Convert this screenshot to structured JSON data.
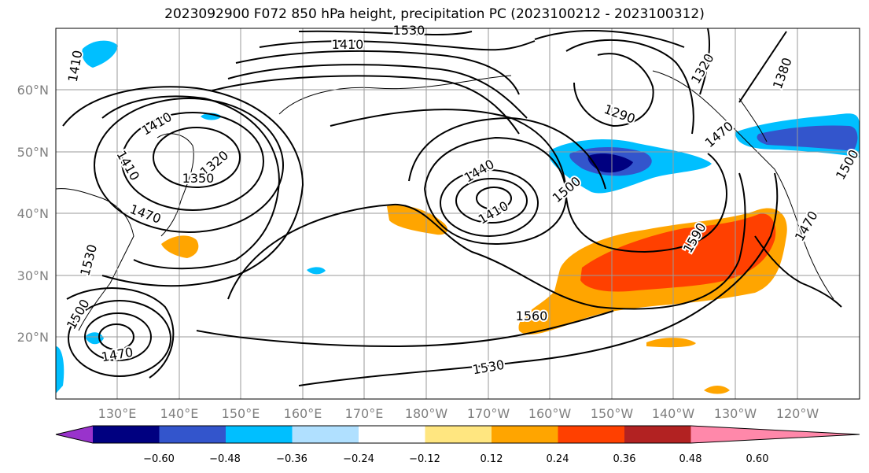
{
  "title": "2023092900 F072 850 hPa height, precipitation PC (2023100212 - 2023100312)",
  "lon_ticks": [
    "130°E",
    "140°E",
    "150°E",
    "160°E",
    "170°E",
    "180°W",
    "170°W",
    "160°W",
    "150°W",
    "140°W",
    "130°W",
    "120°W"
  ],
  "lat_ticks": [
    "60°N",
    "50°N",
    "40°N",
    "30°N",
    "20°N"
  ],
  "contour_labels": [
    "1410",
    "1530",
    "1410",
    "1320",
    "1290",
    "1380",
    "1320",
    "1350",
    "1410",
    "1470",
    "1440",
    "1410",
    "1500",
    "1470",
    "1530",
    "1500",
    "1470",
    "1590",
    "1560",
    "1530",
    "1410",
    "1470",
    "1500"
  ],
  "colorbar": {
    "ticks": [
      "−0.60",
      "−0.48",
      "−0.36",
      "−0.24",
      "−0.12",
      "0.12",
      "0.24",
      "0.36",
      "0.48",
      "0.60"
    ],
    "colors": [
      "#9933cc",
      "#000080",
      "#3355cc",
      "#00bfff",
      "#b0e0ff",
      "#ffffff",
      "#ffe680",
      "#ffa500",
      "#ff4000",
      "#b22222",
      "#ff88aa"
    ]
  }
}
